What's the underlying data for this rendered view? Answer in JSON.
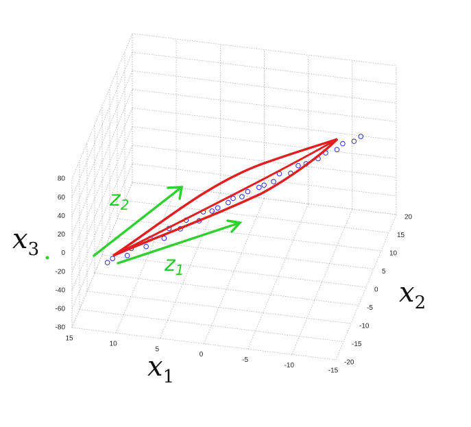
{
  "chart_data": {
    "type": "scatter3d",
    "xlabel": {
      "base": "x",
      "sub": "1"
    },
    "ylabel": {
      "base": "x",
      "sub": "2"
    },
    "zlabel": {
      "base": "x",
      "sub": "3"
    },
    "xlim": [
      15,
      -15
    ],
    "xticks": [
      15,
      10,
      5,
      0,
      -5,
      -10,
      -15
    ],
    "ylim": [
      -20,
      20
    ],
    "yticks": [
      -20,
      -15,
      -10,
      -5,
      0,
      5,
      10,
      15,
      20
    ],
    "zlim": [
      -80,
      80
    ],
    "zticks": [
      -80,
      -60,
      -40,
      -20,
      0,
      20,
      40,
      60,
      80
    ],
    "grid": true,
    "series": [
      {
        "color": "#2a2acc",
        "x": [
          12.0,
          11.5,
          10.0,
          9.8,
          8.2,
          8.0,
          6.5,
          6.2,
          5.0,
          4.6,
          3.2,
          3.0,
          2.0,
          1.6,
          0.5,
          0.2,
          -0.8,
          -1.2,
          -2.4,
          -2.8,
          -3.8,
          -4.2,
          -5.4,
          -6.0,
          -6.8,
          -8.0,
          -8.6,
          -9.8,
          -10.2,
          -11.4,
          -12.0
        ],
        "y": [
          -14.0,
          -13.5,
          -12.5,
          -11.0,
          -10.5,
          -9.0,
          -8.5,
          -7.0,
          -6.5,
          -5.0,
          -4.5,
          -3.0,
          -3.0,
          -1.5,
          -1.0,
          0.5,
          0.5,
          2.0,
          2.5,
          3.5,
          4.0,
          5.5,
          6.0,
          7.5,
          8.0,
          9.0,
          10.5,
          11.0,
          12.5,
          13.0,
          14.0
        ],
        "z": [
          -30,
          -27,
          -26,
          -24,
          -22,
          -19,
          -19,
          -14,
          -15,
          -11,
          -12,
          -8,
          -6,
          -8,
          -3,
          -4,
          -1,
          -1,
          3,
          2,
          5,
          8,
          8,
          11,
          12,
          15,
          16,
          19,
          20,
          22,
          24
        ]
      }
    ],
    "annotations": [
      {
        "base": "z",
        "sub": "2",
        "color": "#22cc22"
      },
      {
        "base": "z",
        "sub": "1",
        "color": "#22cc22"
      }
    ]
  }
}
